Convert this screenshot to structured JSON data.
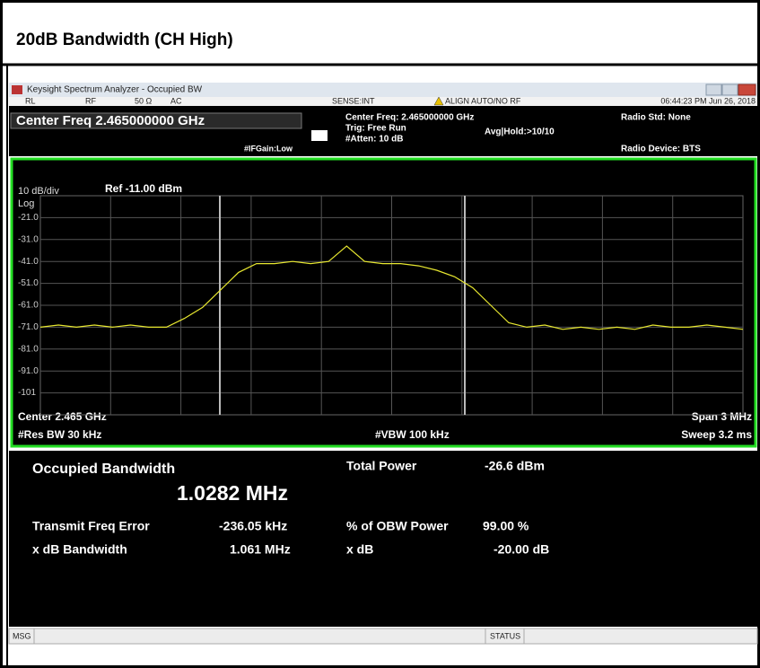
{
  "document_title": "20dB Bandwidth (CH High)",
  "window": {
    "title": "Keysight Spectrum Analyzer - Occupied BW"
  },
  "toolbar": [
    "RL",
    "RF",
    "50 Ω",
    "AC",
    "SENSE:INT",
    "ALIGN AUTO/NO RF",
    "06:44:23 PM Jun 26, 2018"
  ],
  "settings": {
    "center_freq": "Center Freq 2.465000000 GHz",
    "ifgain": "#IFGain:Low",
    "center_freq_info": "Center Freq: 2.465000000 GHz",
    "trig": "Trig: Free Run",
    "avg": "Avg|Hold:>10/10",
    "atten": "#Atten: 10 dB",
    "radio_std": "Radio Std: None",
    "radio_device": "Radio Device: BTS"
  },
  "chart_data": {
    "type": "line",
    "scale_label": "10 dB/div",
    "ref_label": "Ref -11.00 dBm",
    "scale_type": "Log",
    "ylim": [
      -111,
      -11
    ],
    "yticks": [
      {
        "value": -21,
        "label": "-21.0"
      },
      {
        "value": -31,
        "label": "-31.0"
      },
      {
        "value": -41,
        "label": "-41.0"
      },
      {
        "value": -51,
        "label": "-51.0"
      },
      {
        "value": -61,
        "label": "-61.0"
      },
      {
        "value": -71,
        "label": "-71.0"
      },
      {
        "value": -81,
        "label": "-81.0"
      },
      {
        "value": -91,
        "label": "-91.0"
      },
      -101
    ],
    "grid": true,
    "color": "#e8e830",
    "values": [
      -71,
      -70,
      -71,
      -70,
      -71,
      -70,
      -71,
      -71,
      -67,
      -62,
      -54,
      -46,
      -42,
      -42,
      -41,
      -42,
      -41,
      -34,
      -41,
      -42,
      -42,
      -43,
      -45,
      -48,
      -53,
      -61,
      -69,
      -71,
      -70,
      -72,
      -71,
      -72,
      -71,
      -72,
      -70,
      -71,
      -71,
      -70,
      -71,
      -72
    ],
    "footer": [
      "Center  2.465 GHz",
      "#Res BW  30 kHz",
      "#VBW  100 kHz",
      "Span 3 MHz",
      "Sweep  3.2 ms"
    ]
  },
  "results": {
    "obw_label": "Occupied Bandwidth",
    "obw_value": "1.0282 MHz",
    "total_power_label": "Total Power",
    "total_power_value": "-26.6 dBm",
    "freq_error_label": "Transmit Freq Error",
    "freq_error_value": "-236.05 kHz",
    "obw_power_label": "% of OBW Power",
    "obw_power_value": "99.00 %",
    "xdb_bw_label": "x dB Bandwidth",
    "xdb_bw_value": "1.061 MHz",
    "xdb_label": "x dB",
    "xdb_value": "-20.00 dB"
  },
  "status_bar": [
    "MSG",
    "STATUS"
  ]
}
